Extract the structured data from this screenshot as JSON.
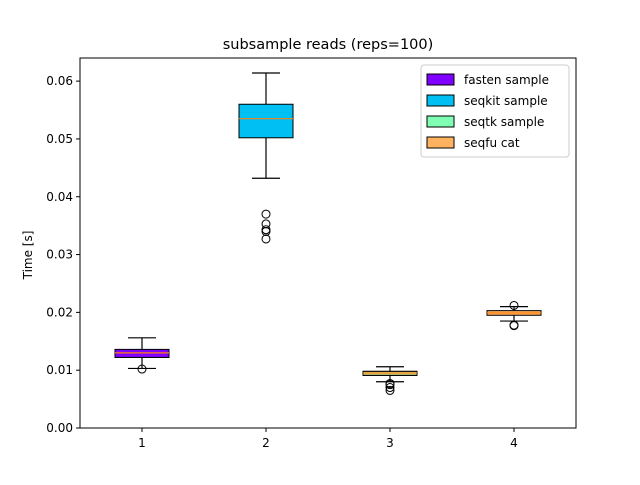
{
  "chart_data": {
    "type": "boxplot",
    "title": "subsample reads (reps=100)",
    "xlabel": "",
    "ylabel": "Time [s]",
    "categories": [
      "1",
      "2",
      "3",
      "4"
    ],
    "ylim": [
      0.0,
      0.064
    ],
    "yticks": [
      "0.00",
      "0.01",
      "0.02",
      "0.03",
      "0.04",
      "0.05",
      "0.06"
    ],
    "grid": false,
    "legend_position": "top-right",
    "series": [
      {
        "name": "fasten sample",
        "color": "#8000ff",
        "median_color": "#ff7f0e",
        "whisker_low": 0.0103,
        "q1": 0.0122,
        "median": 0.013,
        "q3": 0.0136,
        "whisker_high": 0.0156,
        "outliers": [
          0.0102
        ]
      },
      {
        "name": "seqkit sample",
        "color": "#00bff2",
        "median_color": "#ff7f0e",
        "whisker_low": 0.0432,
        "q1": 0.0502,
        "median": 0.0535,
        "q3": 0.056,
        "whisker_high": 0.0614,
        "outliers": [
          0.037,
          0.0353,
          0.0343,
          0.034,
          0.0327
        ]
      },
      {
        "name": "seqtk sample",
        "color": "#80ffb4",
        "overlay_color": "#ffb360",
        "median_color": "#ff7f0e",
        "whisker_low": 0.008,
        "q1": 0.0091,
        "median": 0.0095,
        "q3": 0.0098,
        "whisker_high": 0.0106,
        "outliers": [
          0.0077,
          0.0075,
          0.007,
          0.0065
        ]
      },
      {
        "name": "seqfu cat",
        "color": "#ffb360",
        "median_color": "#ff7f0e",
        "whisker_low": 0.0185,
        "q1": 0.0195,
        "median": 0.0199,
        "q3": 0.0203,
        "whisker_high": 0.021,
        "outliers": [
          0.0212,
          0.0178,
          0.0177
        ]
      }
    ]
  }
}
